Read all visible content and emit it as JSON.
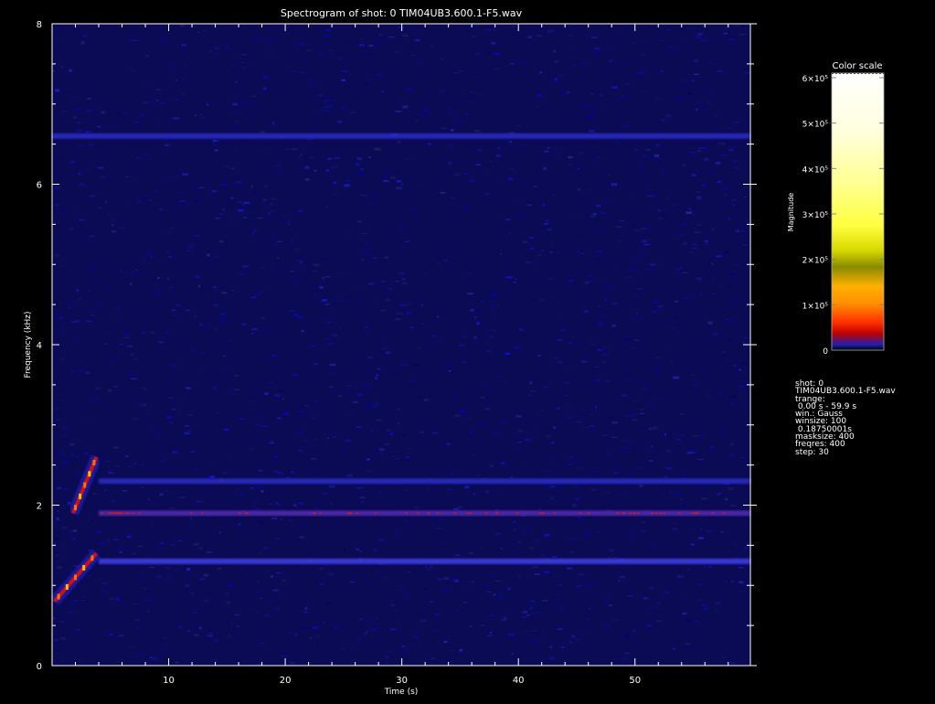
{
  "chart_data": {
    "type": "heatmap",
    "title": "Spectrogram of shot: 0 TIM04UB3.600.1-F5.wav",
    "xlabel": "Time (s)",
    "ylabel": "Frequency (kHz)",
    "xlim": [
      0,
      59.9
    ],
    "ylim": [
      0,
      8
    ],
    "x_ticks": [
      "10",
      "20",
      "30",
      "40",
      "50"
    ],
    "y_ticks": [
      "0",
      "2",
      "4",
      "6",
      "8"
    ],
    "background_level": "dark blue noise",
    "bands": [
      {
        "freq_khz": 1.3,
        "t_start": 4,
        "t_end": 59.9,
        "intensity": "medium"
      },
      {
        "freq_khz": 1.9,
        "t_start": 4,
        "t_end": 59.9,
        "intensity": "medium-red"
      },
      {
        "freq_khz": 2.3,
        "t_start": 4,
        "t_end": 59.9,
        "intensity": "low"
      },
      {
        "freq_khz": 6.6,
        "t_start": 0,
        "t_end": 59.9,
        "intensity": "low"
      }
    ],
    "chirps": [
      {
        "t_start": 0.2,
        "t_end": 3.8,
        "f_start_khz": 0.8,
        "f_end_khz": 1.4
      },
      {
        "t_start": 1.8,
        "t_end": 3.8,
        "f_start_khz": 1.9,
        "f_end_khz": 2.6
      }
    ],
    "colorbar": {
      "title": "Color scale",
      "label": "Magnitude",
      "ticks": [
        {
          "value": 0,
          "label": "0"
        },
        {
          "value": 100000,
          "label": "1×10⁵"
        },
        {
          "value": 200000,
          "label": "2×10⁵"
        },
        {
          "value": 300000,
          "label": "3×10⁵"
        },
        {
          "value": 400000,
          "label": "4×10⁵"
        },
        {
          "value": 500000,
          "label": "5×10⁵"
        },
        {
          "value": 600000,
          "label": "6×10⁵"
        }
      ],
      "max": 610000,
      "stops": [
        "#000000",
        "#1a1aa0",
        "#d00000",
        "#ff3000",
        "#ff9000",
        "#ffb000",
        "#9a9a00",
        "#d0d000",
        "#ffff40",
        "#ffff90",
        "#fffff0",
        "#ffffff"
      ]
    }
  },
  "info_panel": [
    "shot: 0",
    "TIM04UB3.600.1-F5.wav",
    "trange:",
    " 0.00 s - 59.9 s",
    "win.: Gauss",
    "winsize: 100",
    " 0.18750001s",
    "masksize: 400",
    "freqres: 400",
    "step: 30"
  ]
}
